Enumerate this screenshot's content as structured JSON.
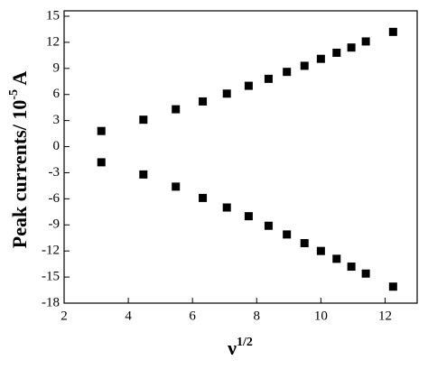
{
  "chart_data": {
    "type": "scatter",
    "x_label": "ν",
    "x_label_sup": "1/2",
    "y_label": "Peak currents/ 10",
    "y_label_sup": "-5",
    "y_label_suffix": " A",
    "x": [
      3.16,
      4.47,
      5.48,
      6.32,
      7.07,
      7.75,
      8.37,
      8.94,
      9.49,
      10.0,
      10.49,
      10.95,
      11.4,
      12.25
    ],
    "series": [
      {
        "color": "#000000",
        "values": [
          1.8,
          3.1,
          4.3,
          5.2,
          6.1,
          7.0,
          7.8,
          8.6,
          9.3,
          10.1,
          10.8,
          11.4,
          12.1,
          13.2
        ]
      },
      {
        "color": "#000000",
        "values": [
          -1.8,
          -3.2,
          -4.6,
          -5.9,
          -7.0,
          -8.0,
          -9.1,
          -10.1,
          -11.1,
          -12.0,
          -12.9,
          -13.8,
          -14.6,
          -16.1
        ]
      }
    ],
    "xlim": [
      2,
      13
    ],
    "xticks": [
      2,
      4,
      6,
      8,
      10,
      12
    ],
    "ylim": [
      -18,
      15
    ],
    "yticks": [
      -18,
      -15,
      -12,
      -9,
      -6,
      -3,
      0,
      3,
      6,
      9,
      12,
      15
    ]
  }
}
